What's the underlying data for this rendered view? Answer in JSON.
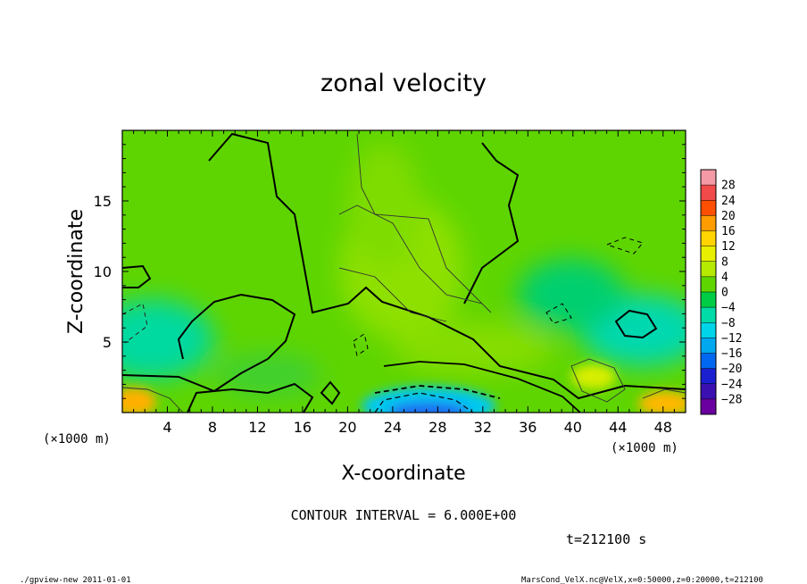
{
  "chart_data": {
    "type": "heatmap",
    "title": "zonal velocity",
    "xlabel": "X-coordinate",
    "ylabel": "Z-coordinate",
    "x_unit": "(×1000 m)",
    "x_unit_right": "(×1000 m)",
    "xlim": [
      0,
      50
    ],
    "ylim": [
      0,
      20
    ],
    "x_ticks": [
      "4",
      "8",
      "12",
      "16",
      "20",
      "24",
      "28",
      "32",
      "36",
      "40",
      "44",
      "48"
    ],
    "y_ticks": [
      "5",
      "10",
      "15"
    ],
    "colorbar_levels": [
      "28",
      "24",
      "20",
      "16",
      "12",
      "8",
      "4",
      "0",
      "−4",
      "−8",
      "−12",
      "−16",
      "−20",
      "−24",
      "−28"
    ],
    "colorbar_colors": [
      "#f49aa6",
      "#f04a4a",
      "#ff4f00",
      "#ff9c00",
      "#ffd400",
      "#e8f000",
      "#b6ea00",
      "#5fd500",
      "#00cc45",
      "#00dba8",
      "#00d4e8",
      "#00a8f0",
      "#0068f0",
      "#1a20d0",
      "#3a10b0",
      "#6a00a0"
    ],
    "contour_interval": "CONTOUR INTERVAL = 6.000E+00",
    "time": "t=212100 s",
    "grid": false
  },
  "footer": {
    "left": "./gpview-new  2011-01-01",
    "right": "MarsCond_VelX.nc@VelX,x=0:50000,z=0:20000,t=212100"
  }
}
